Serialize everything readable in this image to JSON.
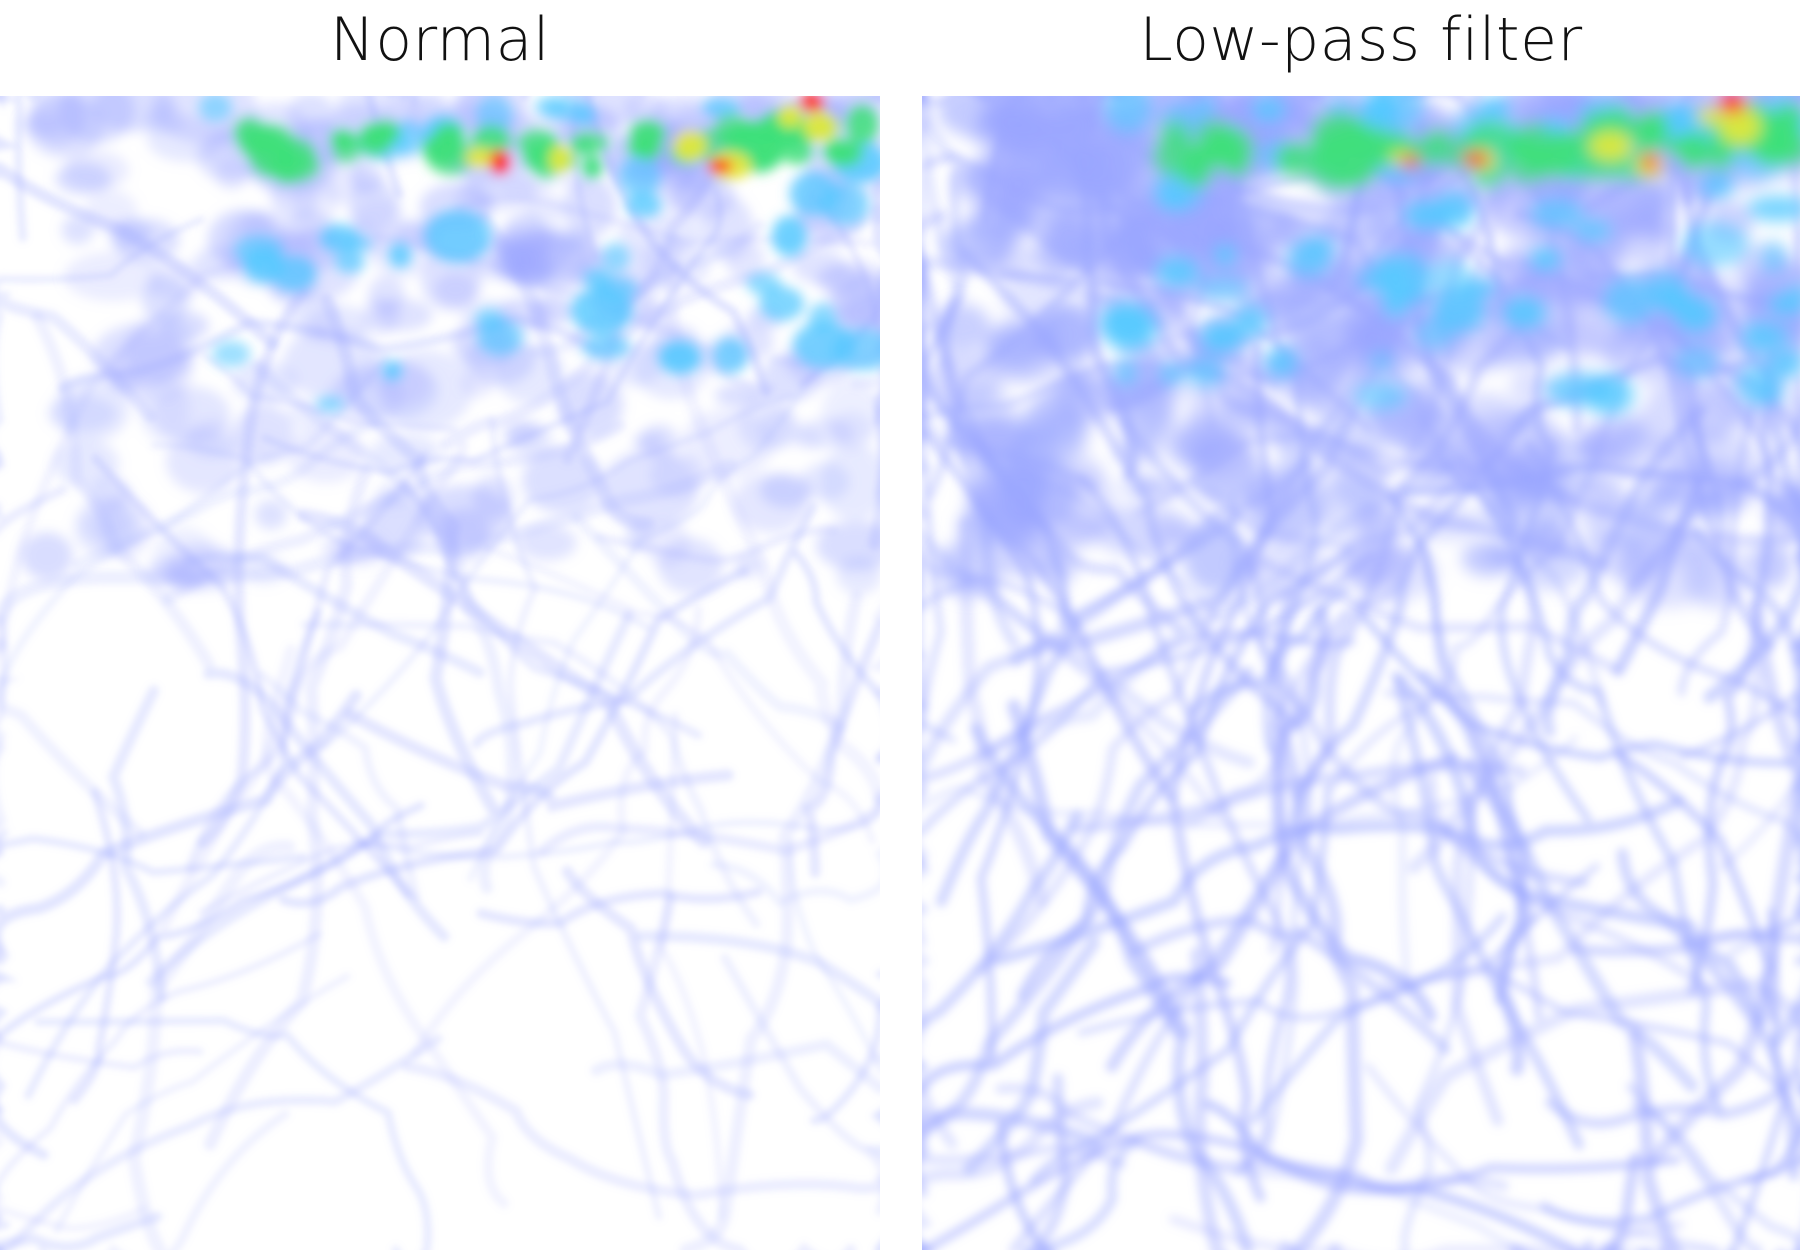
{
  "panels": [
    {
      "title": "Normal",
      "filter": "normal",
      "seed": 7
    },
    {
      "title": "Low-pass filter",
      "filter": "low-pass",
      "seed": 7
    }
  ],
  "palette": {
    "low": "#9aa6ff",
    "mid_low": "#55c9ff",
    "mid": "#3fe07a",
    "mid_high": "#e8e83a",
    "high": "#ff2a1a"
  }
}
